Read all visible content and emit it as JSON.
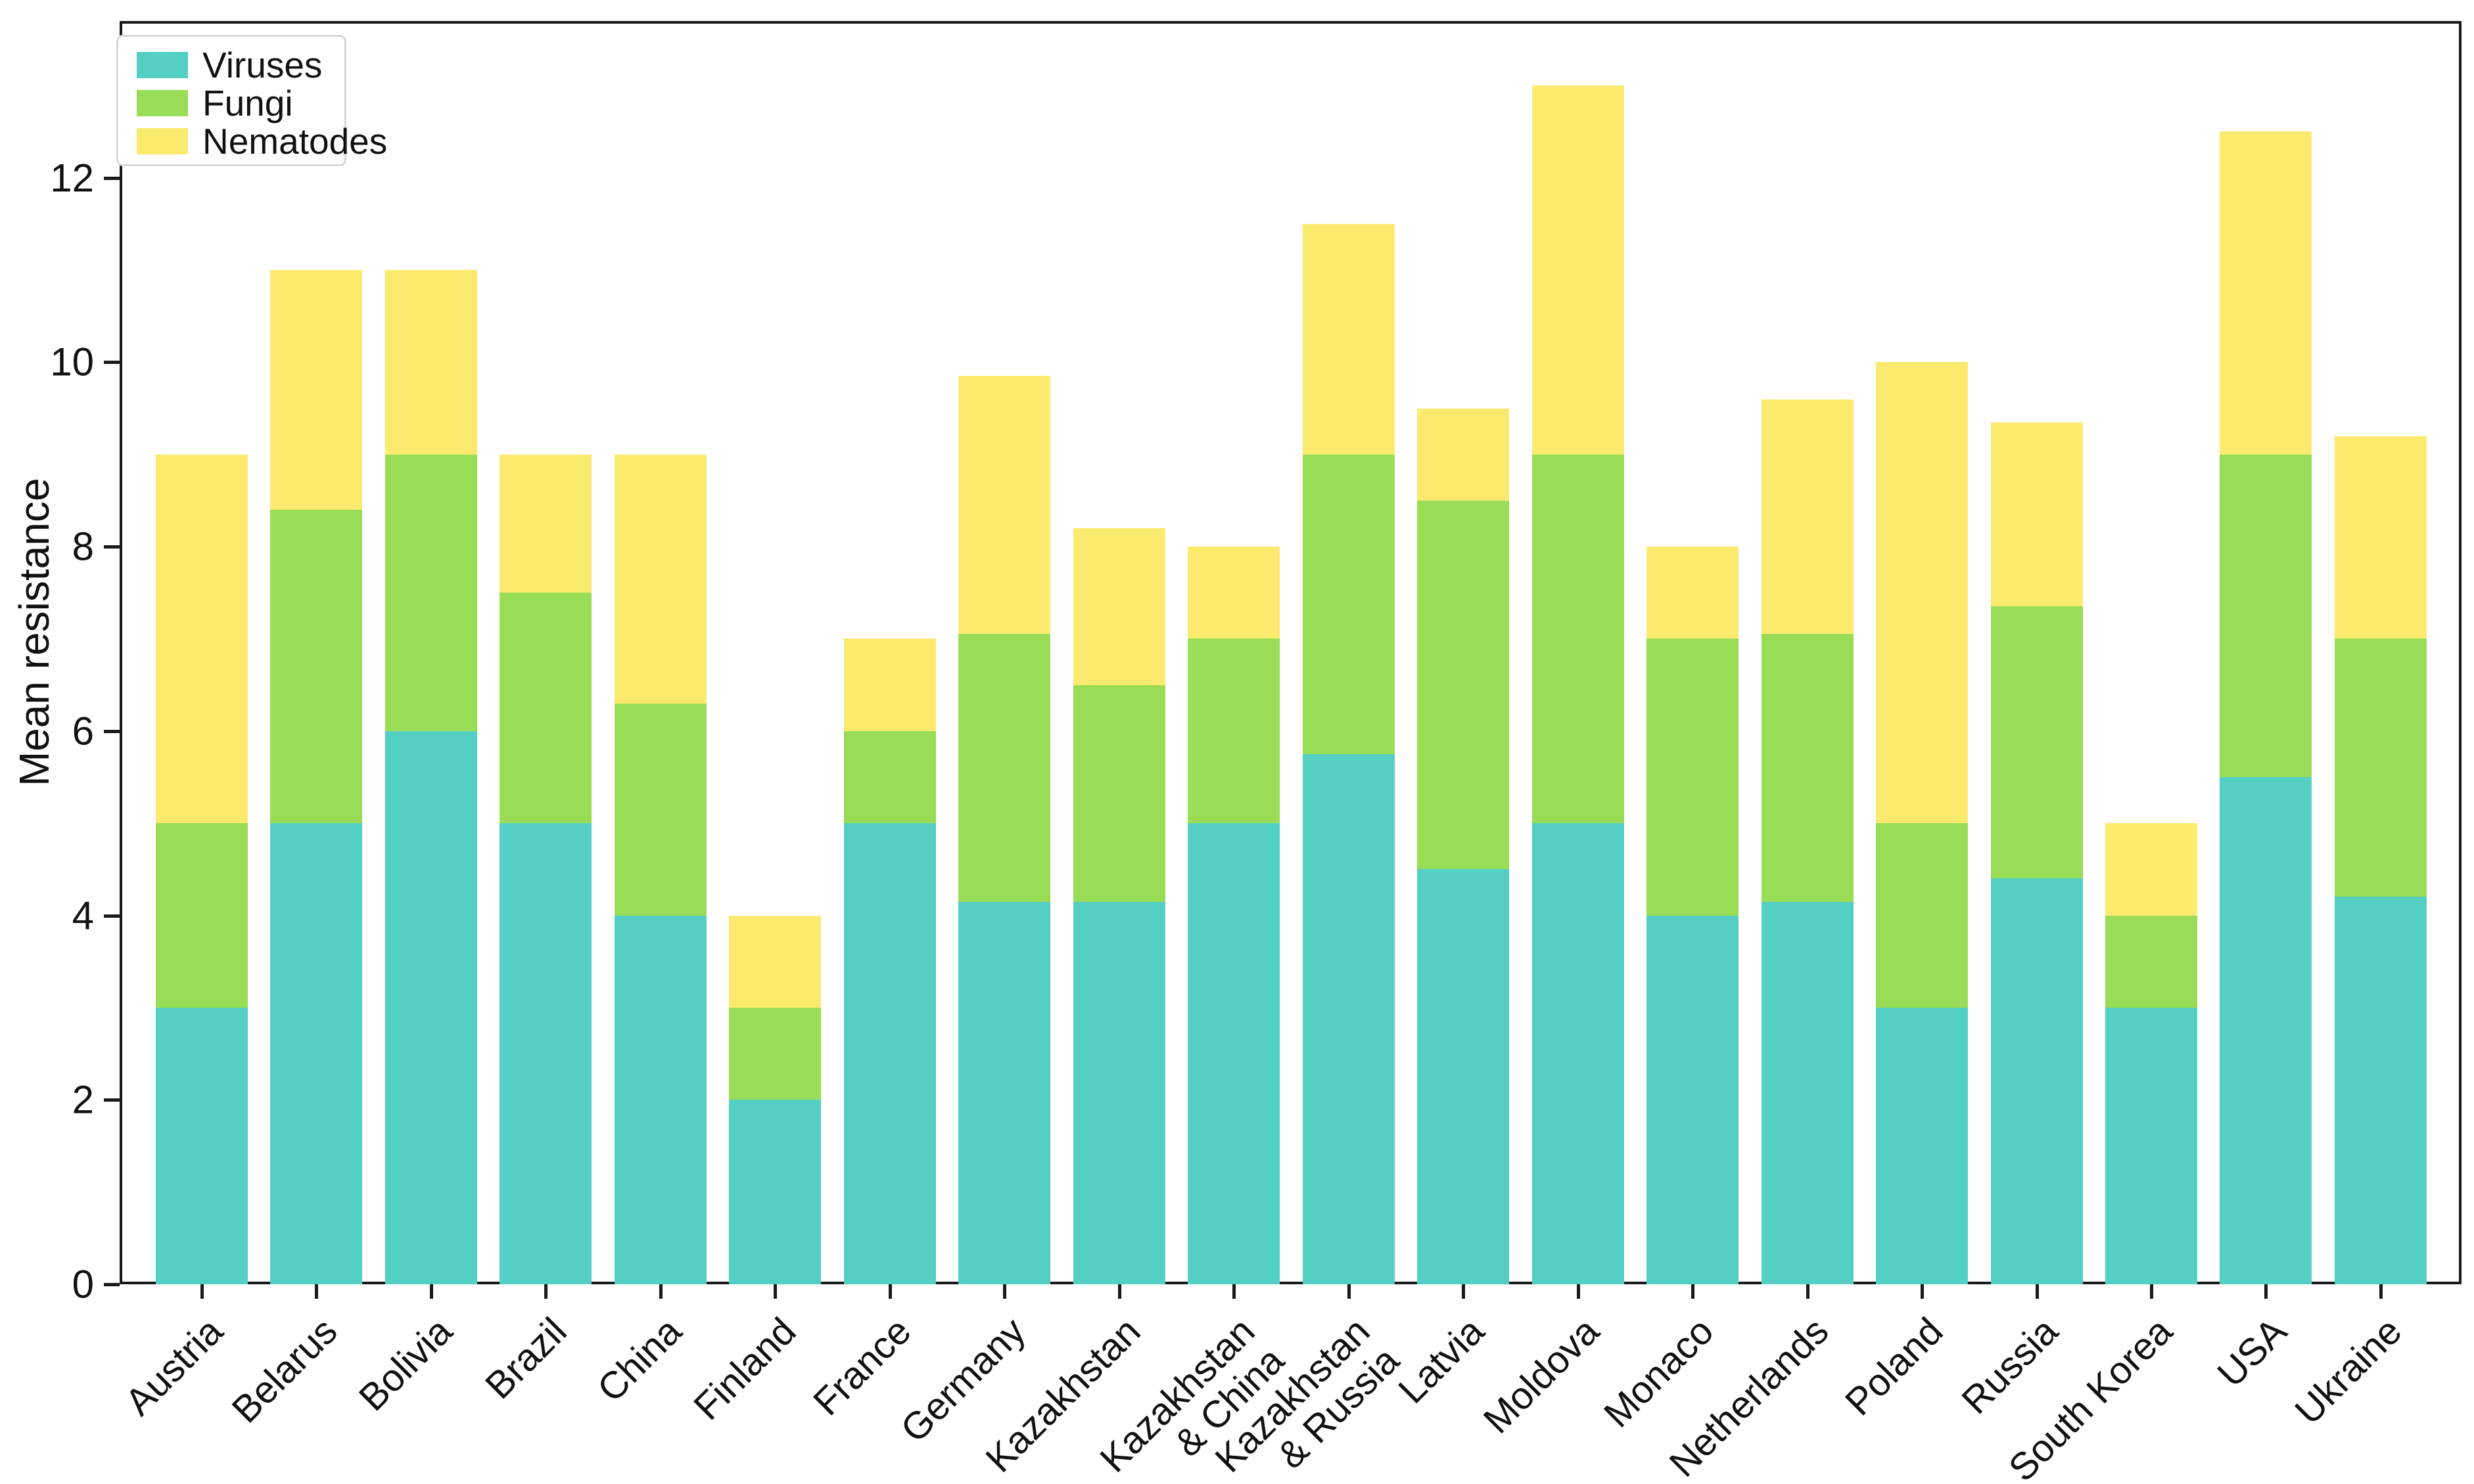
{
  "chart_data": {
    "type": "bar",
    "stacked": true,
    "title": "",
    "xlabel": "",
    "ylabel": "Mean resistance",
    "ylim": [
      0,
      13.7
    ],
    "yticks": [
      0,
      2,
      4,
      6,
      8,
      10,
      12
    ],
    "grid": false,
    "legend_position": "upper-left",
    "categories": [
      "Austria",
      "Belarus",
      "Bolivia",
      "Brazil",
      "China",
      "Finland",
      "France",
      "Germany",
      "Kazakhstan",
      "Kazakhstan\n& China",
      "Kazakhstan\n& Russia",
      "Latvia",
      "Moldova",
      "Monaco",
      "Netherlands",
      "Poland",
      "Russia",
      "South Korea",
      "USA",
      "Ukraine"
    ],
    "series": [
      {
        "name": "Viruses",
        "color": "#54cfc4",
        "values": [
          3.0,
          5.0,
          6.0,
          5.0,
          4.0,
          2.0,
          5.0,
          4.15,
          4.15,
          5.0,
          5.75,
          4.5,
          5.0,
          4.0,
          4.15,
          3.0,
          4.4,
          3.0,
          5.5,
          4.2
        ]
      },
      {
        "name": "Fungi",
        "color": "#99dc56",
        "values": [
          2.0,
          3.4,
          3.0,
          2.5,
          2.3,
          1.0,
          1.0,
          2.9,
          2.35,
          2.0,
          3.25,
          4.0,
          4.0,
          3.0,
          2.9,
          2.0,
          2.95,
          1.0,
          3.5,
          2.8
        ]
      },
      {
        "name": "Nematodes",
        "color": "#fbea6e",
        "values": [
          4.0,
          2.6,
          2.0,
          1.5,
          2.7,
          1.0,
          1.0,
          2.8,
          1.7,
          1.0,
          2.5,
          1.0,
          4.0,
          1.0,
          2.55,
          5.0,
          2.0,
          1.0,
          3.5,
          2.2
        ]
      }
    ],
    "totals": [
      9.0,
      11.0,
      11.0,
      9.0,
      9.0,
      4.0,
      7.0,
      9.85,
      8.2,
      8.0,
      11.5,
      9.5,
      13.0,
      8.0,
      9.6,
      10.0,
      9.35,
      5.0,
      12.5,
      9.2
    ]
  },
  "axes": {
    "ylabel": "Mean resistance",
    "ytick_labels": [
      "0",
      "2",
      "4",
      "6",
      "8",
      "10",
      "12"
    ]
  },
  "legend": {
    "items": [
      {
        "label": "Viruses",
        "color": "#54cfc4"
      },
      {
        "label": "Fungi",
        "color": "#99dc56"
      },
      {
        "label": "Nematodes",
        "color": "#fbea6e"
      }
    ]
  }
}
